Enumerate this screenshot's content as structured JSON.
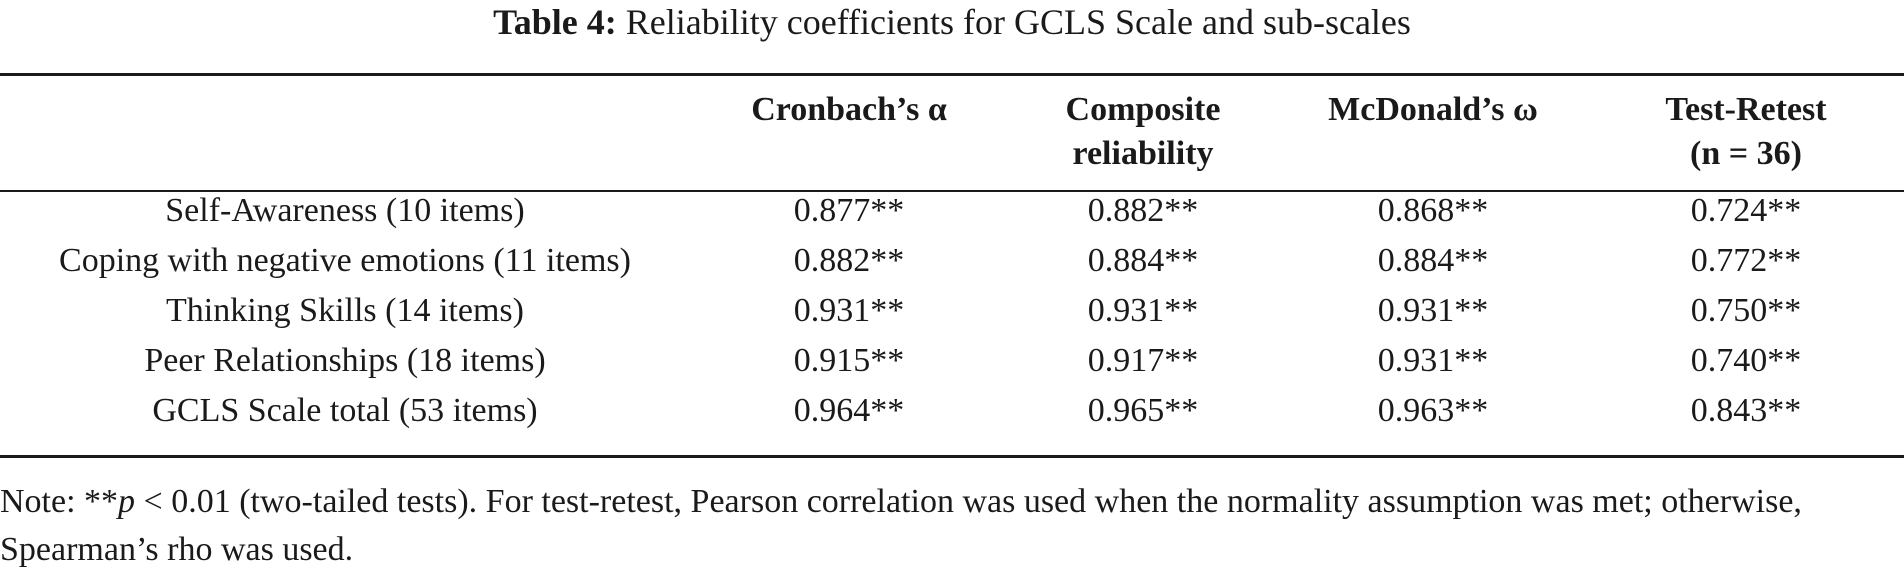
{
  "caption": {
    "label": "Table 4:",
    "text": "Reliability coefficients for GCLS Scale and sub-scales"
  },
  "table": {
    "headers": [
      "",
      "Cronbach’s α",
      "Composite reliability",
      "McDonald’s ω",
      "Test-Retest (n = 36)"
    ],
    "rows": [
      [
        "Self-Awareness (10 items)",
        "0.877**",
        "0.882**",
        "0.868**",
        "0.724**"
      ],
      [
        "Coping with negative emotions (11 items)",
        "0.882**",
        "0.884**",
        "0.884**",
        "0.772**"
      ],
      [
        "Thinking Skills (14 items)",
        "0.931**",
        "0.931**",
        "0.931**",
        "0.750**"
      ],
      [
        "Peer Relationships (18 items)",
        "0.915**",
        "0.917**",
        "0.931**",
        "0.740**"
      ],
      [
        "GCLS Scale total (53 items)",
        "0.964**",
        "0.965**",
        "0.963**",
        "0.843**"
      ]
    ]
  },
  "note": {
    "prefix": "Note: **",
    "p_symbol": "p",
    "text": " < 0.01 (two-tailed tests). For test-retest, Pearson correlation was used when the normality assumption was met; otherwise, Spearman’s rho was used."
  }
}
